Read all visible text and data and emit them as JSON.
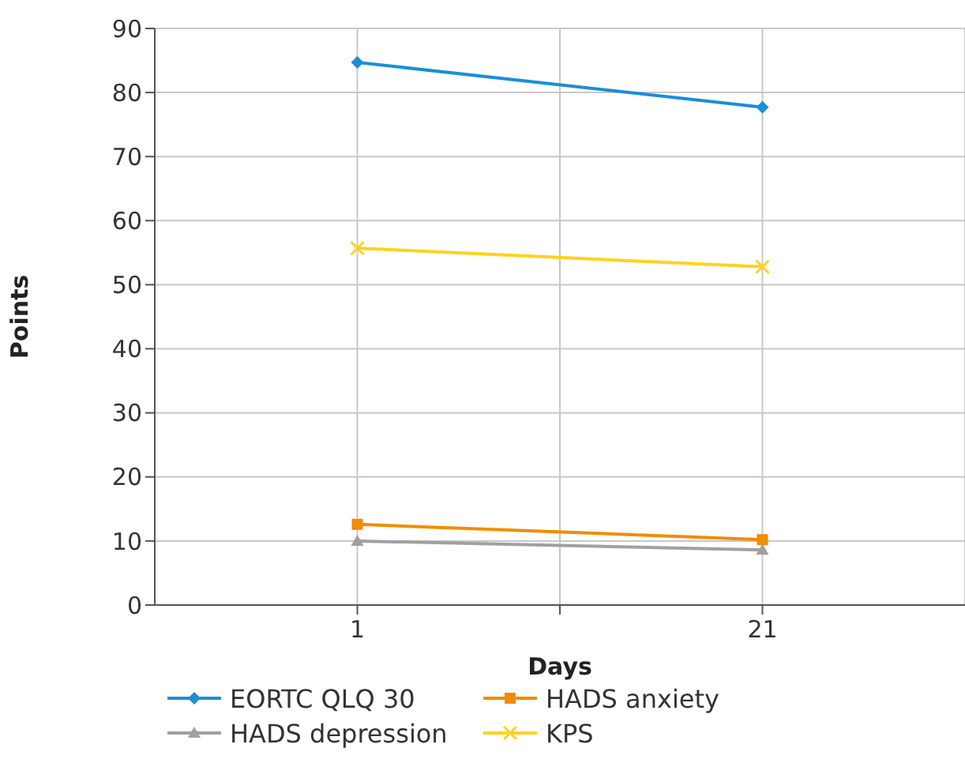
{
  "chart_data": {
    "type": "line",
    "xlabel": "Days",
    "ylabel": "Points",
    "categories": [
      "1",
      "21"
    ],
    "series": [
      {
        "name": "EORTC QLQ 30",
        "color": "#1b8ed8",
        "values": [
          84.7,
          77.7
        ],
        "marker": "diamond"
      },
      {
        "name": "HADS anxiety",
        "color": "#f28c00",
        "values": [
          12.6,
          10.2
        ],
        "marker": "square"
      },
      {
        "name": "HADS depression",
        "color": "#a0a0a0",
        "values": [
          10.0,
          8.6
        ],
        "marker": "triangle"
      },
      {
        "name": "KPS",
        "color": "#ffd21f",
        "values": [
          55.7,
          52.8
        ],
        "marker": "cross"
      }
    ],
    "ylim": [
      0,
      90
    ],
    "yticks": [
      0,
      10,
      20,
      30,
      40,
      50,
      60,
      70,
      80,
      90
    ],
    "grid": true,
    "legend": "bottom",
    "line_style": "solid"
  }
}
